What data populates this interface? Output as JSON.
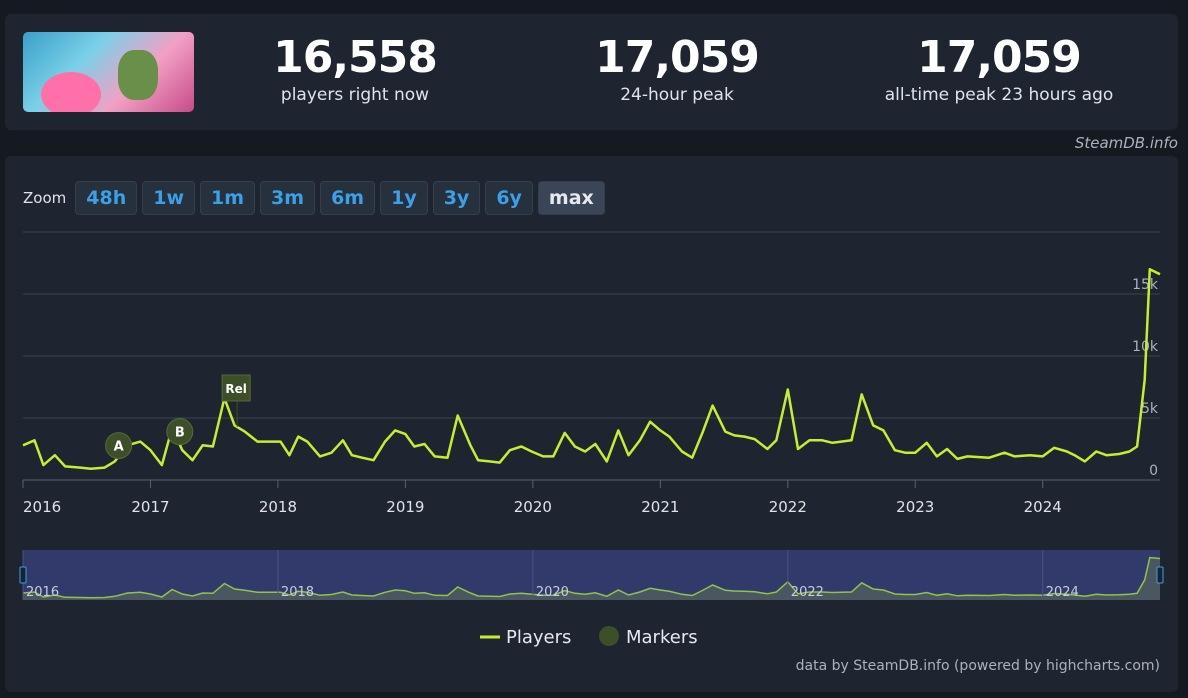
{
  "header": {
    "stats": [
      {
        "value": "16,558",
        "label": "players right now"
      },
      {
        "value": "17,059",
        "label": "24-hour peak"
      },
      {
        "value": "17,059",
        "label": "all-time peak 23 hours ago"
      }
    ],
    "source": "SteamDB.info"
  },
  "zoom": {
    "label": "Zoom",
    "buttons": [
      "48h",
      "1w",
      "1m",
      "3m",
      "6m",
      "1y",
      "3y",
      "6y",
      "max"
    ],
    "active": "max"
  },
  "chart_data": {
    "type": "line",
    "x": [
      2016,
      2016.09,
      2016.16,
      2016.25,
      2016.33,
      2016.45,
      2016.53,
      2016.64,
      2016.72,
      2016.82,
      2016.92,
      2017,
      2017.09,
      2017.17,
      2017.25,
      2017.33,
      2017.41,
      2017.49,
      2017.58,
      2017.66,
      2017.74,
      2017.84,
      2017.94,
      2018.02,
      2018.09,
      2018.16,
      2018.23,
      2018.33,
      2018.42,
      2018.51,
      2018.58,
      2018.66,
      2018.75,
      2018.84,
      2018.92,
      2019,
      2019.07,
      2019.15,
      2019.23,
      2019.33,
      2019.41,
      2019.51,
      2019.57,
      2019.66,
      2019.74,
      2019.82,
      2019.91,
      2019.99,
      2020.08,
      2020.16,
      2020.25,
      2020.33,
      2020.41,
      2020.49,
      2020.58,
      2020.67,
      2020.75,
      2020.84,
      2020.92,
      2021,
      2021.07,
      2021.17,
      2021.25,
      2021.33,
      2021.41,
      2021.51,
      2021.58,
      2021.66,
      2021.74,
      2021.84,
      2021.91,
      2022,
      2022.08,
      2022.17,
      2022.27,
      2022.35,
      2022.42,
      2022.5,
      2022.58,
      2022.67,
      2022.75,
      2022.84,
      2022.92,
      2023,
      2023.09,
      2023.17,
      2023.25,
      2023.33,
      2023.41,
      2023.58,
      2023.7,
      2023.78,
      2023.9,
      2024,
      2024.09,
      2024.19,
      2024.25,
      2024.33,
      2024.42,
      2024.5,
      2024.6,
      2024.68,
      2024.74,
      2024.8,
      2024.84,
      2024.92
    ],
    "series": [
      {
        "name": "Players",
        "color": "#c3f02c",
        "values": [
          2800,
          3200,
          1200,
          2000,
          1100,
          1000,
          900,
          1000,
          1500,
          2800,
          3100,
          2400,
          1200,
          4200,
          2400,
          1600,
          2800,
          2700,
          6600,
          4400,
          3900,
          3100,
          3100,
          3100,
          2000,
          3500,
          3100,
          1900,
          2200,
          3200,
          2000,
          1800,
          1600,
          3100,
          4000,
          3700,
          2700,
          2900,
          1900,
          1800,
          5200,
          2800,
          1600,
          1500,
          1400,
          2400,
          2700,
          2300,
          1900,
          1900,
          3800,
          2700,
          2300,
          2900,
          1500,
          4000,
          2000,
          3200,
          4700,
          4000,
          3500,
          2300,
          1800,
          3800,
          6000,
          3900,
          3600,
          3500,
          3300,
          2500,
          3200,
          7300,
          2500,
          3200,
          3200,
          3000,
          3100,
          3200,
          6900,
          4400,
          4000,
          2400,
          2200,
          2200,
          3000,
          1900,
          2500,
          1700,
          1900,
          1800,
          2200,
          1900,
          2000,
          1900,
          2600,
          2300,
          2000,
          1500,
          2300,
          2000,
          2100,
          2300,
          2700,
          8100,
          17000,
          16600
        ]
      }
    ],
    "marker_series": {
      "name": "Markers",
      "color": "#3d4f28",
      "items": [
        {
          "label": "A",
          "x": 2016.75,
          "shape": "circle"
        },
        {
          "label": "B",
          "x": 2017.23,
          "shape": "circle"
        },
        {
          "label": "Rel",
          "x": 2017.68,
          "shape": "flag"
        }
      ]
    },
    "xlim": [
      2016,
      2024.92
    ],
    "xticks": [
      2016,
      2017,
      2018,
      2019,
      2020,
      2021,
      2022,
      2023,
      2024
    ],
    "ylim": [
      0,
      20000
    ],
    "yticks": [
      0,
      {
        "value": 5000,
        "label": "5k"
      },
      {
        "value": 10000,
        "label": "10k"
      },
      {
        "value": 15000,
        "label": "15k"
      }
    ],
    "grid": true,
    "navigator": true,
    "credit": "data by SteamDB.info (powered by highcharts.com)"
  }
}
